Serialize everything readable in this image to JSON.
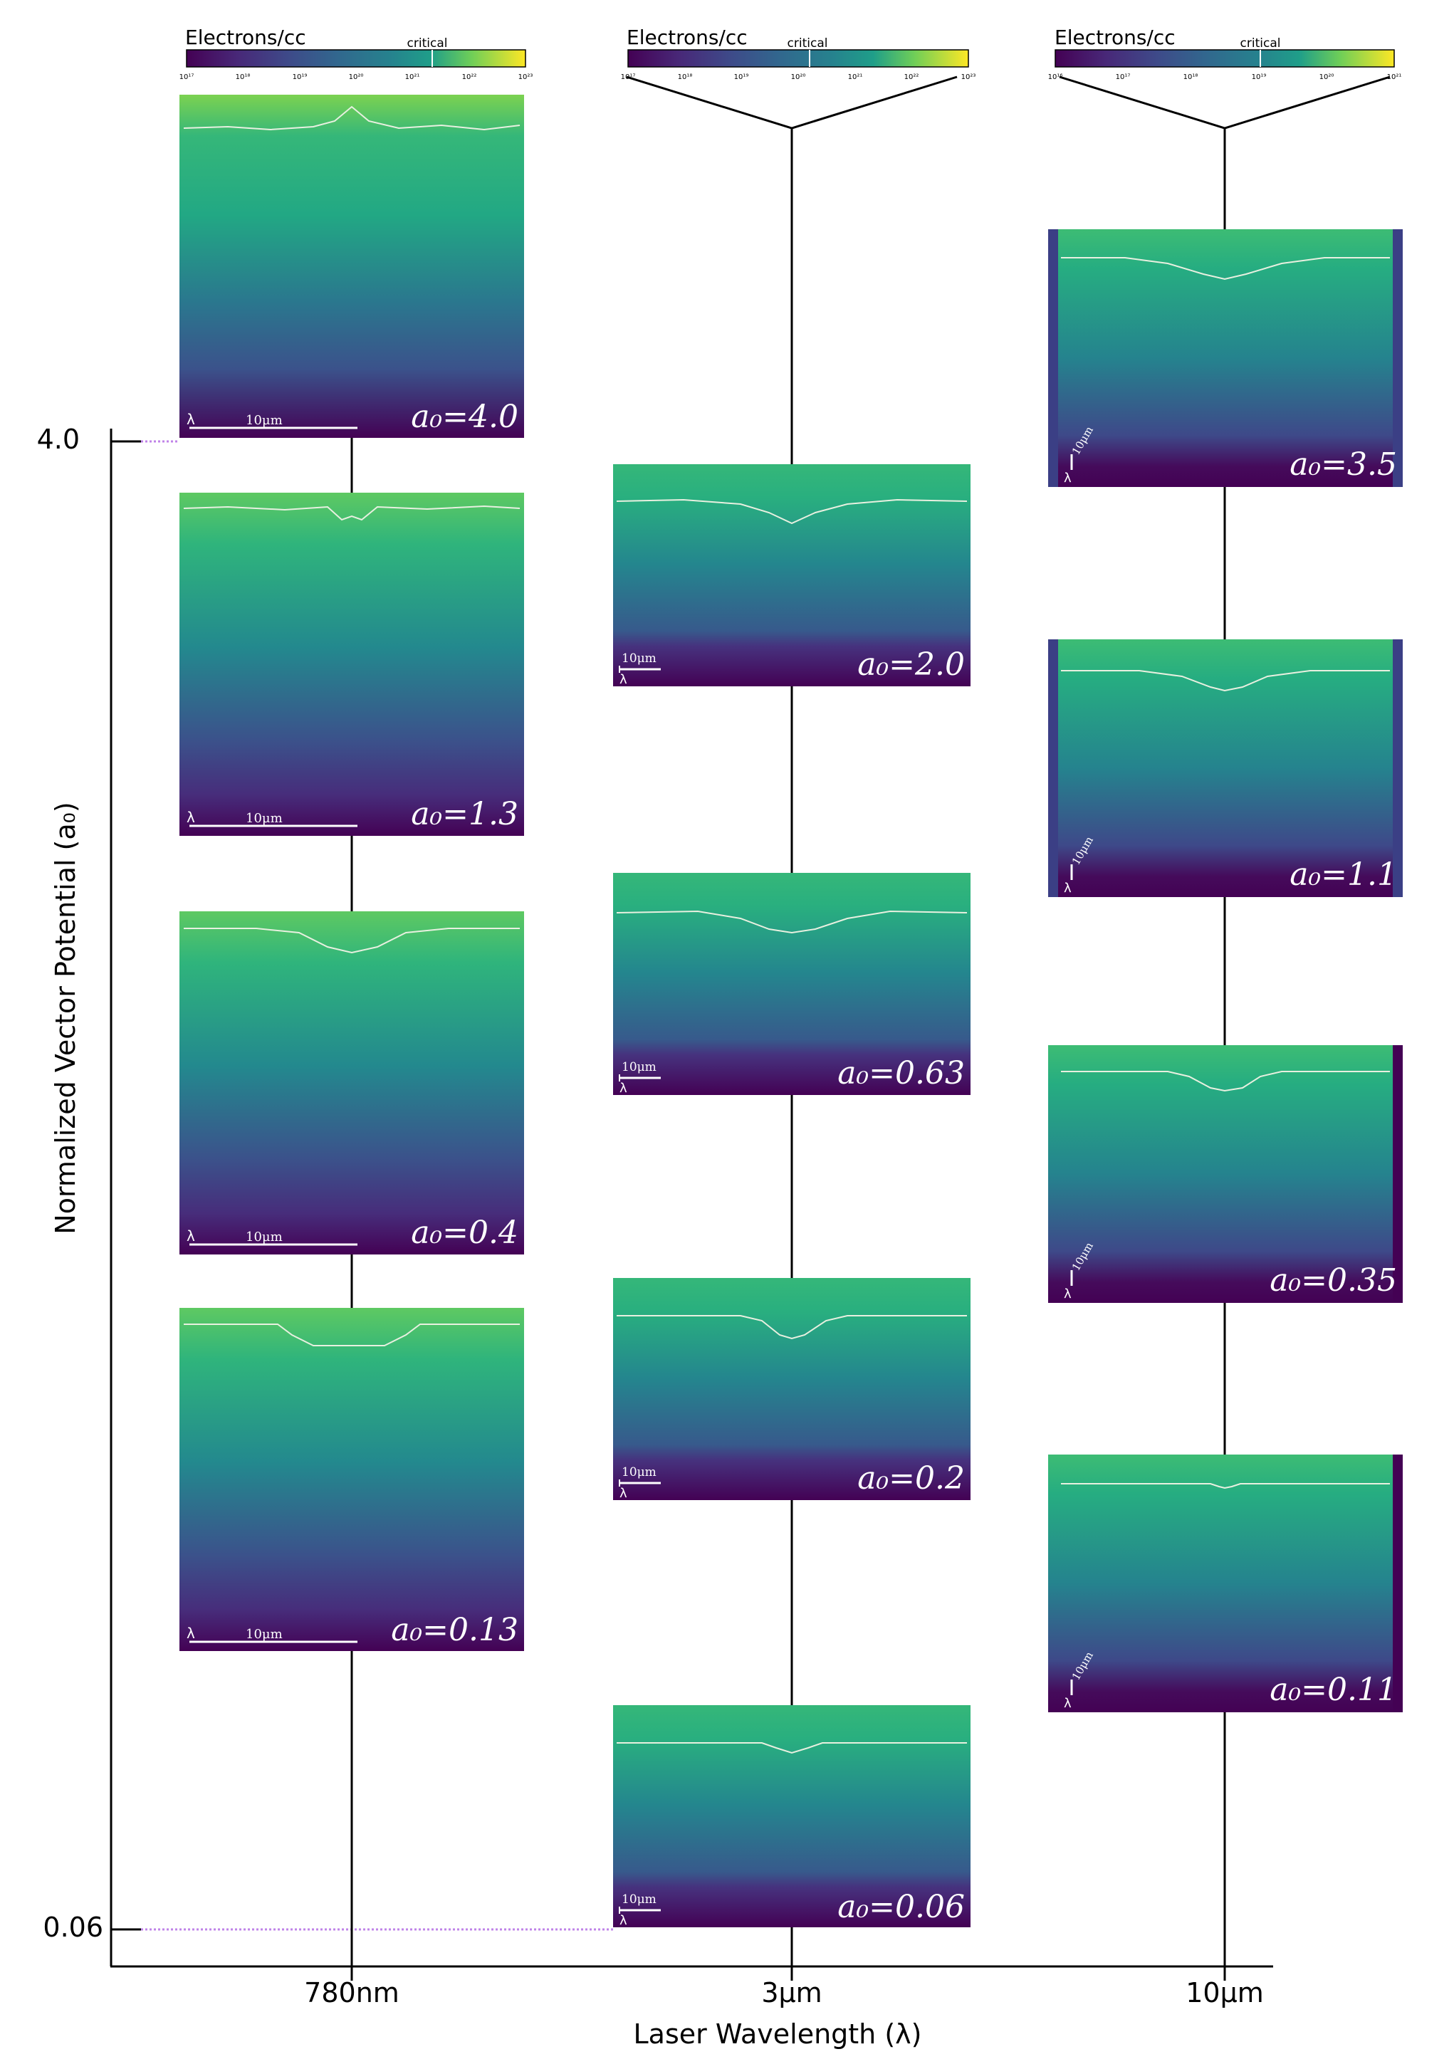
{
  "chart_data": {
    "type": "panel-grid",
    "xlabel": "Laser Wavelength (λ)",
    "ylabel": "Normalized Vector Potential (a₀)",
    "y_ticks": [
      "4.0",
      "0.06"
    ],
    "colorbar_label": "Electrons/cc",
    "colorbar_marker": "critical",
    "columns": [
      {
        "name": "780nm",
        "colorbar_ticks": [
          "10¹⁷",
          "10¹⁸",
          "10¹⁹",
          "10²⁰",
          "10²¹",
          "10²²",
          "10²³"
        ],
        "critical_exponent": 21.2,
        "scale_bar": {
          "lambda": "λ",
          "length": "10μm"
        },
        "panels": [
          {
            "a0": 4.0,
            "label": "a₀=4.0"
          },
          {
            "a0": 1.3,
            "label": "a₀=1.3"
          },
          {
            "a0": 0.4,
            "label": "a₀=0.4"
          },
          {
            "a0": 0.13,
            "label": "a₀=0.13"
          }
        ]
      },
      {
        "name": "3μm",
        "colorbar_ticks": [
          "10¹⁷",
          "10¹⁸",
          "10¹⁹",
          "10²⁰",
          "10²¹",
          "10²²",
          "10²³"
        ],
        "critical_exponent": 20.1,
        "scale_bar": {
          "lambda": "λ",
          "length": "10μm"
        },
        "panels": [
          {
            "a0": 2.0,
            "label": "a₀=2.0"
          },
          {
            "a0": 0.63,
            "label": "a₀=0.63"
          },
          {
            "a0": 0.2,
            "label": "a₀=0.2"
          },
          {
            "a0": 0.06,
            "label": "a₀=0.06"
          }
        ]
      },
      {
        "name": "10μm",
        "colorbar_ticks": [
          "10¹⁶",
          "10¹⁷",
          "10¹⁸",
          "10¹⁹",
          "10²⁰",
          "10²¹"
        ],
        "critical_exponent": 19.1,
        "scale_bar": {
          "lambda": "λ",
          "length": "10μm"
        },
        "panels": [
          {
            "a0": 3.5,
            "label": "a₀=3.5"
          },
          {
            "a0": 1.1,
            "label": "a₀=1.1"
          },
          {
            "a0": 0.35,
            "label": "a₀=0.35"
          },
          {
            "a0": 0.11,
            "label": "a₀=0.11"
          }
        ]
      }
    ]
  },
  "colors": {
    "viridis_dark": "#440154",
    "viridis_mid": "#21918c",
    "viridis_light": "#fde725",
    "guide_dotted": "#c084e8",
    "contour": "#e8f0e0"
  }
}
